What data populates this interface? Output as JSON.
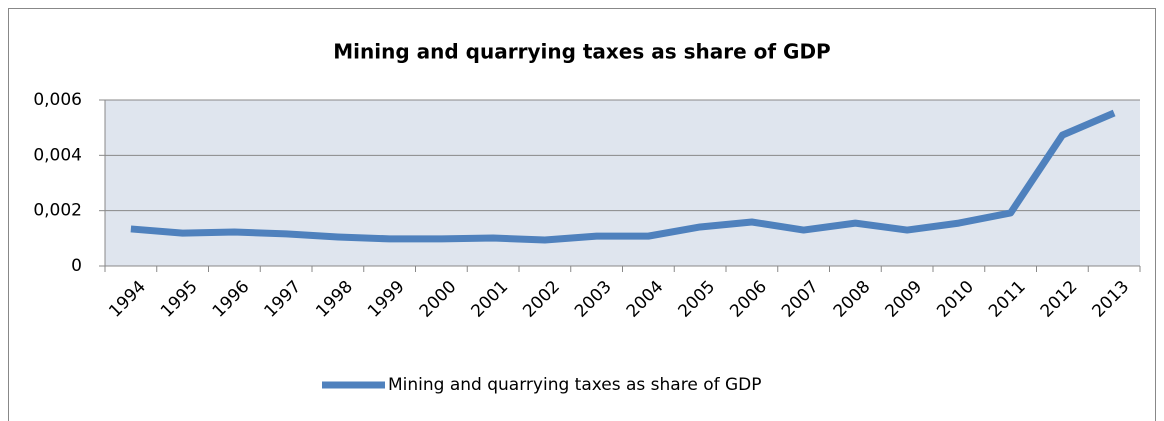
{
  "chart_data": {
    "type": "line",
    "title": "Mining and quarrying taxes as share of GDP",
    "categories": [
      "1994",
      "1995",
      "1996",
      "1997",
      "1998",
      "1999",
      "2000",
      "2001",
      "2002",
      "2003",
      "2004",
      "2005",
      "2006",
      "2007",
      "2008",
      "2009",
      "2010",
      "2011",
      "2012",
      "2013"
    ],
    "series": [
      {
        "name": "Mining and quarrying taxes as share of GDP",
        "color": "#4f81bd",
        "values": [
          0.00134,
          0.00119,
          0.00123,
          0.00116,
          0.00105,
          0.00098,
          0.00098,
          0.00101,
          0.00094,
          0.00108,
          0.00108,
          0.00141,
          0.00159,
          0.0013,
          0.00155,
          0.0013,
          0.00155,
          0.00192,
          0.00473,
          0.00553
        ]
      }
    ],
    "ylim": [
      0,
      0.006
    ],
    "yticks": [
      0,
      {
        "value": 0.002,
        "label": "0,002"
      },
      {
        "value": 0.004,
        "label": "0,004"
      },
      {
        "value": 0.006,
        "label": "0,006"
      }
    ],
    "grid": true,
    "legend": "bottom"
  }
}
